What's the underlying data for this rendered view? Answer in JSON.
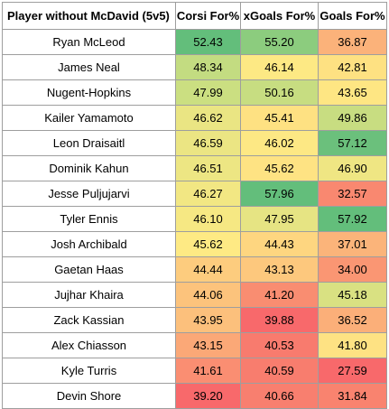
{
  "headers": {
    "player": "Player without McDavid (5v5)",
    "corsi": "Corsi For%",
    "xgoals": "xGoals For%",
    "goals": "Goals For%"
  },
  "rows": [
    {
      "player": "Ryan McLeod",
      "corsi": "52.43",
      "xgoals": "55.20",
      "goals": "36.87",
      "corsi_color": "#63be7b",
      "xgoals_color": "#8ccc7e",
      "goals_color": "#fbb27a"
    },
    {
      "player": "James Neal",
      "corsi": "48.34",
      "xgoals": "46.14",
      "goals": "42.81",
      "corsi_color": "#c3dc81",
      "xgoals_color": "#fde984",
      "goals_color": "#fee182"
    },
    {
      "player": "Nugent-Hopkins",
      "corsi": "47.99",
      "xgoals": "50.16",
      "goals": "43.65",
      "corsi_color": "#cbdf81",
      "xgoals_color": "#c7dd81",
      "goals_color": "#fee683"
    },
    {
      "player": "Kailer Yamamoto",
      "corsi": "46.62",
      "xgoals": "45.41",
      "goals": "49.86",
      "corsi_color": "#eae583",
      "xgoals_color": "#fee182",
      "goals_color": "#c8dd81"
    },
    {
      "player": "Leon Draisaitl",
      "corsi": "46.59",
      "xgoals": "46.02",
      "goals": "57.12",
      "corsi_color": "#ebe583",
      "xgoals_color": "#fde884",
      "goals_color": "#6bc07c"
    },
    {
      "player": "Dominik Kahun",
      "corsi": "46.51",
      "xgoals": "45.62",
      "goals": "46.90",
      "corsi_color": "#ede683",
      "xgoals_color": "#fee383",
      "goals_color": "#efe683"
    },
    {
      "player": "Jesse Puljujarvi",
      "corsi": "46.27",
      "xgoals": "57.96",
      "goals": "32.57",
      "corsi_color": "#f2e783",
      "xgoals_color": "#63be7b",
      "goals_color": "#f98870"
    },
    {
      "player": "Tyler Ennis",
      "corsi": "46.10",
      "xgoals": "47.95",
      "goals": "57.92",
      "corsi_color": "#f6e883",
      "xgoals_color": "#e6e483",
      "goals_color": "#63be7b"
    },
    {
      "player": "Josh Archibald",
      "corsi": "45.62",
      "xgoals": "44.43",
      "goals": "37.01",
      "corsi_color": "#feea84",
      "xgoals_color": "#fed680",
      "goals_color": "#fbb47a"
    },
    {
      "player": "Gaetan Haas",
      "corsi": "44.44",
      "xgoals": "43.13",
      "goals": "34.00",
      "corsi_color": "#fdcc7e",
      "xgoals_color": "#fdc87d",
      "goals_color": "#fa9673"
    },
    {
      "player": "Jujhar Khaira",
      "corsi": "44.06",
      "xgoals": "41.20",
      "goals": "45.18",
      "corsi_color": "#fcc37c",
      "xgoals_color": "#f98d71",
      "goals_color": "#d9e182"
    },
    {
      "player": "Zack Kassian",
      "corsi": "43.95",
      "xgoals": "39.88",
      "goals": "36.52",
      "corsi_color": "#fcc07c",
      "xgoals_color": "#f8696b",
      "goals_color": "#fbaf79"
    },
    {
      "player": "Alex Chiasson",
      "corsi": "43.15",
      "xgoals": "40.53",
      "goals": "41.80",
      "corsi_color": "#fba877",
      "xgoals_color": "#f87b6e",
      "goals_color": "#fee283"
    },
    {
      "player": "Kyle Turris",
      "corsi": "41.61",
      "xgoals": "40.59",
      "goals": "27.59",
      "corsi_color": "#fa8e72",
      "xgoals_color": "#f87d6e",
      "goals_color": "#f8696b"
    },
    {
      "player": "Devin Shore",
      "corsi": "39.20",
      "xgoals": "40.66",
      "goals": "31.84",
      "corsi_color": "#f8696b",
      "xgoals_color": "#f87f6f",
      "goals_color": "#f9836f"
    }
  ]
}
